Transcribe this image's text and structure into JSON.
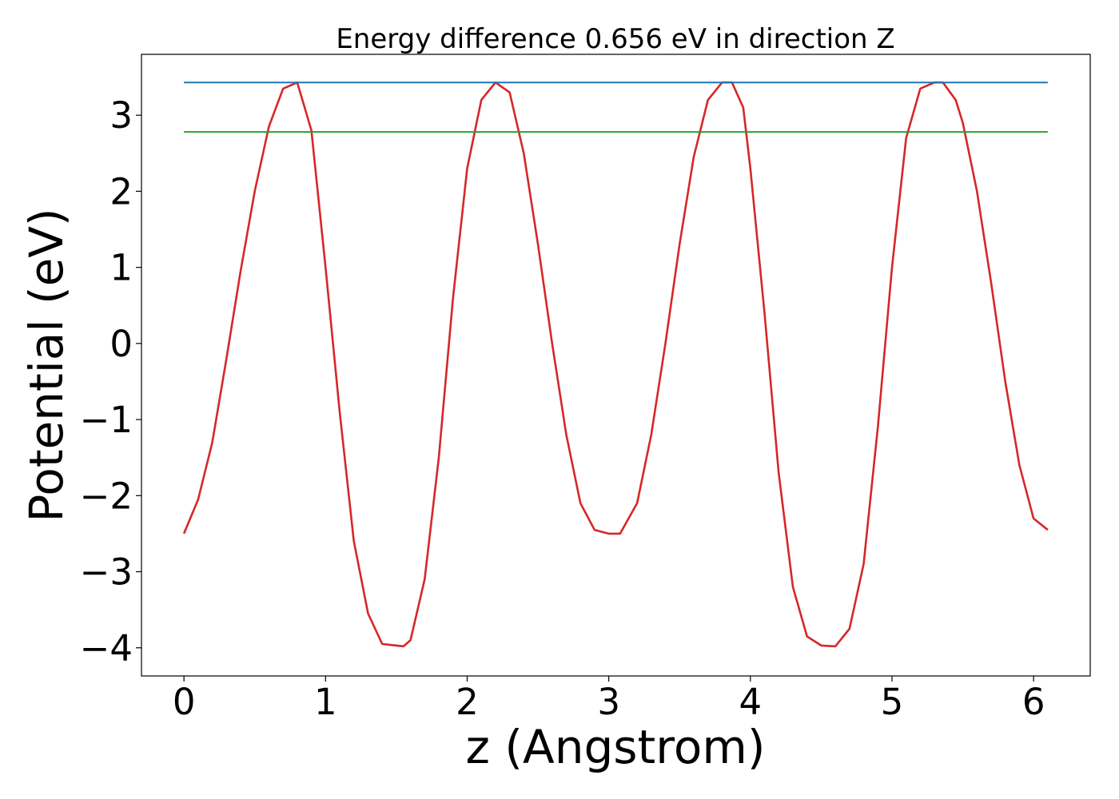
{
  "chart_data": {
    "type": "line",
    "title": "Energy difference 0.656 eV in direction Z",
    "xlabel": "z (Angstrom)",
    "ylabel": "Potential (eV)",
    "xlim": [
      -0.3,
      6.4
    ],
    "ylim": [
      -4.37,
      3.8
    ],
    "xticks": [
      0,
      1,
      2,
      3,
      4,
      5,
      6
    ],
    "xtick_labels": [
      "0",
      "1",
      "2",
      "3",
      "4",
      "5",
      "6"
    ],
    "yticks": [
      -4,
      -3,
      -2,
      -1,
      0,
      1,
      2,
      3
    ],
    "ytick_labels": [
      "−4",
      "−3",
      "−2",
      "−1",
      "0",
      "1",
      "2",
      "3"
    ],
    "grid": false,
    "legend": "none",
    "series": [
      {
        "color": "#d62728",
        "x": [
          0.0,
          0.1,
          0.2,
          0.3,
          0.4,
          0.5,
          0.6,
          0.7,
          0.8,
          0.9,
          1.0,
          1.1,
          1.2,
          1.3,
          1.4,
          1.5,
          1.55,
          1.6,
          1.7,
          1.8,
          1.9,
          2.0,
          2.1,
          2.2,
          2.3,
          2.4,
          2.5,
          2.6,
          2.7,
          2.8,
          2.9,
          3.0,
          3.08,
          3.2,
          3.3,
          3.4,
          3.5,
          3.6,
          3.7,
          3.8,
          3.87,
          3.95,
          4.0,
          4.1,
          4.2,
          4.3,
          4.4,
          4.5,
          4.6,
          4.7,
          4.8,
          4.9,
          5.0,
          5.1,
          5.2,
          5.3,
          5.36,
          5.45,
          5.5,
          5.6,
          5.7,
          5.8,
          5.9,
          6.0,
          6.1
        ],
        "y": [
          -2.5,
          -2.05,
          -1.3,
          -0.2,
          0.95,
          2.0,
          2.85,
          3.35,
          3.43,
          2.8,
          1.0,
          -0.9,
          -2.6,
          -3.55,
          -3.95,
          -3.97,
          -3.98,
          -3.9,
          -3.1,
          -1.5,
          0.6,
          2.3,
          3.2,
          3.43,
          3.3,
          2.5,
          1.3,
          0.0,
          -1.2,
          -2.1,
          -2.45,
          -2.5,
          -2.5,
          -2.1,
          -1.2,
          0.0,
          1.3,
          2.45,
          3.2,
          3.43,
          3.43,
          3.1,
          2.3,
          0.4,
          -1.7,
          -3.2,
          -3.85,
          -3.97,
          -3.98,
          -3.75,
          -2.9,
          -1.1,
          1.0,
          2.7,
          3.35,
          3.43,
          3.43,
          3.2,
          2.9,
          2.0,
          0.8,
          -0.5,
          -1.6,
          -2.3,
          -2.45
        ]
      },
      {
        "color": "#1f77b4",
        "x": [
          0.0,
          6.1
        ],
        "y": [
          3.43,
          3.43
        ]
      },
      {
        "color": "#2ca02c",
        "x": [
          0.0,
          6.1
        ],
        "y": [
          2.78,
          2.78
        ]
      }
    ]
  }
}
